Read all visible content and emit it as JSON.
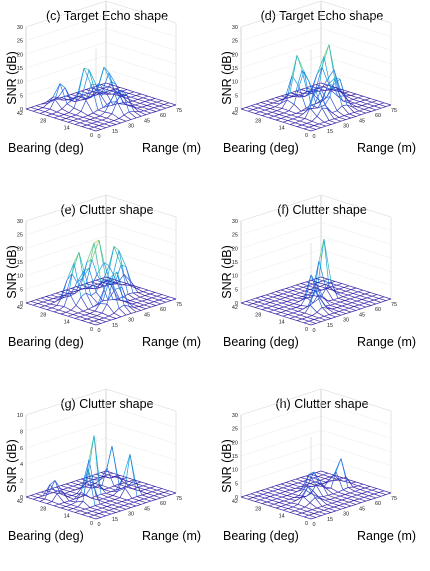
{
  "chart_data": [
    {
      "type": "surface",
      "title": "(c) Target Echo shape",
      "zlabel": "SNR (dB)",
      "xlabel": "Range (m)",
      "ylabel": "Bearing (deg)",
      "zlim": [
        0,
        30
      ],
      "z_ticks": [
        "0",
        "5",
        "10",
        "15",
        "20",
        "25",
        "30"
      ],
      "x_ticks": [
        "0",
        "15",
        "30",
        "45",
        "60",
        "75"
      ],
      "y_ticks": [
        "0",
        "14",
        "28",
        "42"
      ],
      "peaks": [
        {
          "range": 30,
          "bearing": 24,
          "snr": 17,
          "width": 7
        },
        {
          "range": 48,
          "bearing": 24,
          "snr": 14,
          "width": 7
        },
        {
          "range": 38,
          "bearing": 10,
          "snr": 10,
          "width": 7
        },
        {
          "range": 20,
          "bearing": 34,
          "snr": 9,
          "width": 6
        }
      ]
    },
    {
      "type": "surface",
      "title": "(d) Target Echo shape",
      "zlabel": "SNR (dB)",
      "xlabel": "Range (m)",
      "ylabel": "Bearing (deg)",
      "zlim": [
        0,
        30
      ],
      "z_ticks": [
        "0",
        "5",
        "10",
        "15",
        "20",
        "25",
        "30"
      ],
      "x_ticks": [
        "0",
        "15",
        "30",
        "45",
        "60",
        "75"
      ],
      "y_ticks": [
        "0",
        "14",
        "28",
        "42"
      ],
      "peaks": [
        {
          "range": 33,
          "bearing": 28,
          "snr": 20,
          "width": 7
        },
        {
          "range": 55,
          "bearing": 26,
          "snr": 21,
          "width": 7
        },
        {
          "range": 44,
          "bearing": 14,
          "snr": 14,
          "width": 7
        },
        {
          "range": 25,
          "bearing": 12,
          "snr": 11,
          "width": 6
        }
      ]
    },
    {
      "type": "surface",
      "title": "(e) Clutter shape",
      "zlabel": "SNR (dB)",
      "xlabel": "Range (m)",
      "ylabel": "Bearing (deg)",
      "zlim": [
        0,
        30
      ],
      "z_ticks": [
        "0",
        "5",
        "10",
        "15",
        "20",
        "25",
        "30"
      ],
      "x_ticks": [
        "0",
        "15",
        "30",
        "45",
        "60",
        "75"
      ],
      "y_ticks": [
        "0",
        "14",
        "28",
        "42"
      ],
      "peaks": [
        {
          "range": 22,
          "bearing": 26,
          "snr": 20,
          "width": 7
        },
        {
          "range": 40,
          "bearing": 26,
          "snr": 23,
          "width": 8
        },
        {
          "range": 58,
          "bearing": 24,
          "snr": 19,
          "width": 7
        },
        {
          "range": 32,
          "bearing": 10,
          "snr": 16,
          "width": 7
        }
      ]
    },
    {
      "type": "surface",
      "title": "(f) Clutter shape",
      "zlabel": "SNR (dB)",
      "xlabel": "Range (m)",
      "ylabel": "Bearing (deg)",
      "zlim": [
        0,
        30
      ],
      "z_ticks": [
        "0",
        "5",
        "10",
        "15",
        "20",
        "25",
        "30"
      ],
      "x_ticks": [
        "0",
        "15",
        "30",
        "45",
        "60",
        "75"
      ],
      "y_ticks": [
        "0",
        "14",
        "28",
        "42"
      ],
      "peaks": [
        {
          "range": 50,
          "bearing": 24,
          "snr": 30,
          "width": 4
        },
        {
          "range": 34,
          "bearing": 20,
          "snr": 12,
          "width": 5
        },
        {
          "range": 24,
          "bearing": 12,
          "snr": 8,
          "width": 5
        }
      ]
    },
    {
      "type": "surface",
      "title": "(g) Clutter shape",
      "zlabel": "SNR (dB)",
      "xlabel": "Range (m)",
      "ylabel": "Bearing (deg)",
      "zlim": [
        0,
        10
      ],
      "z_ticks": [
        "0",
        "2",
        "4",
        "6",
        "8",
        "10"
      ],
      "x_ticks": [
        "0",
        "15",
        "30",
        "45",
        "60",
        "75"
      ],
      "y_ticks": [
        "0",
        "14",
        "28",
        "42"
      ],
      "peaks": [
        {
          "range": 36,
          "bearing": 26,
          "snr": 9,
          "width": 4
        },
        {
          "range": 20,
          "bearing": 18,
          "snr": 6,
          "width": 4
        },
        {
          "range": 52,
          "bearing": 14,
          "snr": 7,
          "width": 4
        },
        {
          "range": 60,
          "bearing": 30,
          "snr": 5,
          "width": 4
        },
        {
          "range": 12,
          "bearing": 32,
          "snr": 4,
          "width": 4
        }
      ]
    },
    {
      "type": "surface",
      "title": "(h) Clutter shape",
      "zlabel": "SNR (dB)",
      "xlabel": "Range (m)",
      "ylabel": "Bearing (deg)",
      "zlim": [
        0,
        30
      ],
      "z_ticks": [
        "0",
        "5",
        "10",
        "15",
        "20",
        "25",
        "30"
      ],
      "x_ticks": [
        "0",
        "15",
        "30",
        "45",
        "60",
        "75"
      ],
      "y_ticks": [
        "0",
        "14",
        "28",
        "42"
      ],
      "peaks": [
        {
          "range": 60,
          "bearing": 22,
          "snr": 12,
          "width": 5
        },
        {
          "range": 40,
          "bearing": 24,
          "snr": 9,
          "width": 6
        },
        {
          "range": 24,
          "bearing": 16,
          "snr": 6,
          "width": 6
        }
      ]
    }
  ]
}
